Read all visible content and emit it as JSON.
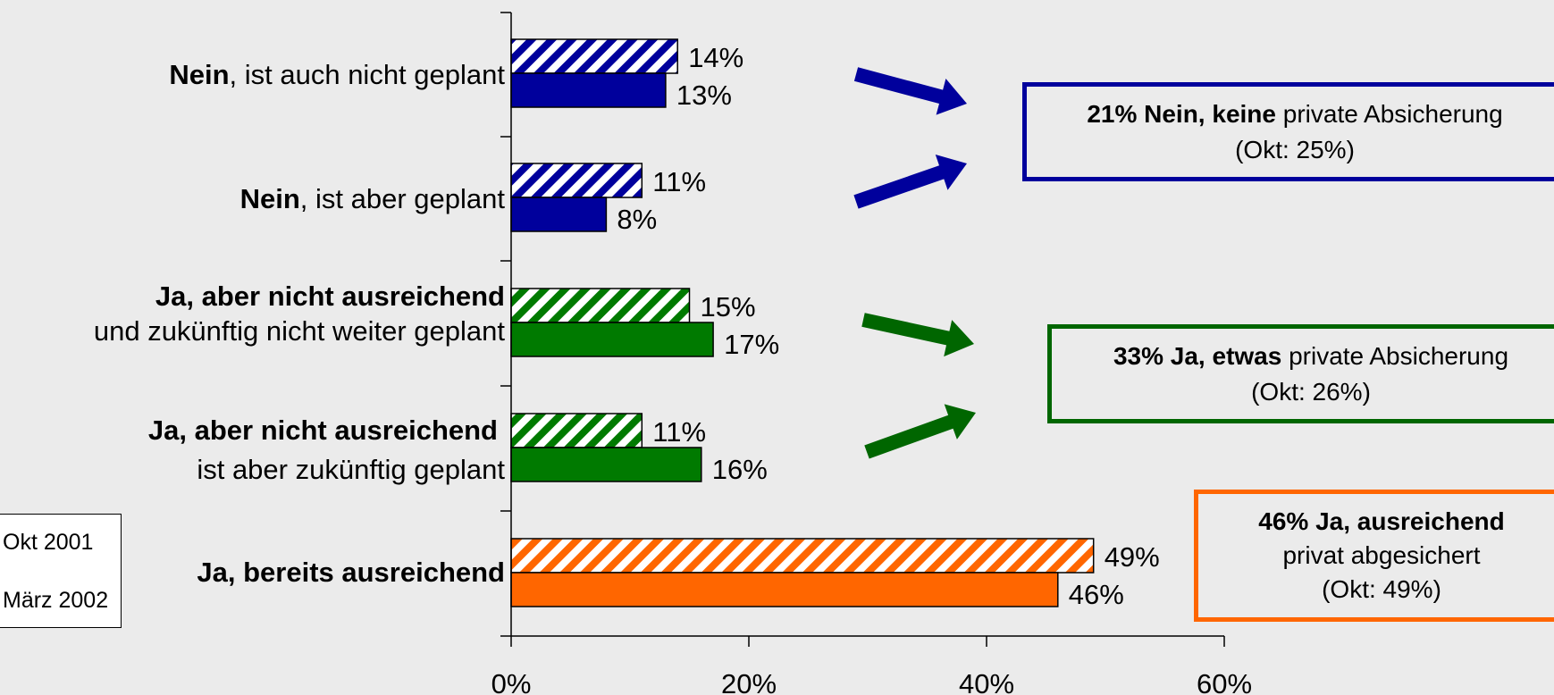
{
  "chart_data": {
    "type": "bar",
    "orientation": "horizontal",
    "categories": [
      {
        "bold": "Nein",
        "rest": ", ist auch nicht geplant",
        "line2": ""
      },
      {
        "bold": "Nein",
        "rest": ", ist aber geplant",
        "line2": ""
      },
      {
        "bold": "Ja, aber nicht ausreichend",
        "rest": "",
        "line2": "und zukünftig nicht weiter geplant"
      },
      {
        "bold": "Ja, aber nicht ausreichend",
        "rest": "",
        "line2": "ist aber zukünftig geplant"
      },
      {
        "bold": "Ja, bereits ausreichend",
        "rest": "",
        "line2": ""
      }
    ],
    "series": [
      {
        "name": "Okt 2001",
        "pattern": "hatched",
        "values": [
          14,
          11,
          15,
          11,
          49
        ]
      },
      {
        "name": "März 2002",
        "pattern": "solid",
        "values": [
          13,
          8,
          17,
          16,
          46
        ]
      }
    ],
    "value_labels": {
      "Okt 2001": [
        "14%",
        "11%",
        "15%",
        "11%",
        "49%"
      ],
      "März 2002": [
        "13%",
        "8%",
        "17%",
        "16%",
        "46%"
      ]
    },
    "bar_colors": [
      "#00009c",
      "#00009c",
      "#007a00",
      "#007a00",
      "#ff6600"
    ],
    "xlim": [
      0,
      60
    ],
    "xticks": [
      "0%",
      "20%",
      "40%",
      "60%"
    ],
    "legend_placement": "bottom-left"
  },
  "legend": {
    "okt": "Okt 2001",
    "maerz": "März 2002"
  },
  "summary_boxes": [
    {
      "bold": "21% Nein, keine",
      "rest": " private Absicherung",
      "line2": "(Okt: 25%)",
      "line3": "",
      "color": "#00009c"
    },
    {
      "bold": "33% Ja, etwas",
      "rest": " private Absicherung",
      "line2": "(Okt: 26%)",
      "line3": "",
      "color": "#006600"
    },
    {
      "bold": "46% Ja, ausreichend",
      "rest": "",
      "line2": "privat abgesichert",
      "line3": "(Okt: 49%)",
      "color": "#ff6600"
    }
  ],
  "arrow_colors": [
    "#00009c",
    "#00009c",
    "#006600",
    "#006600"
  ]
}
